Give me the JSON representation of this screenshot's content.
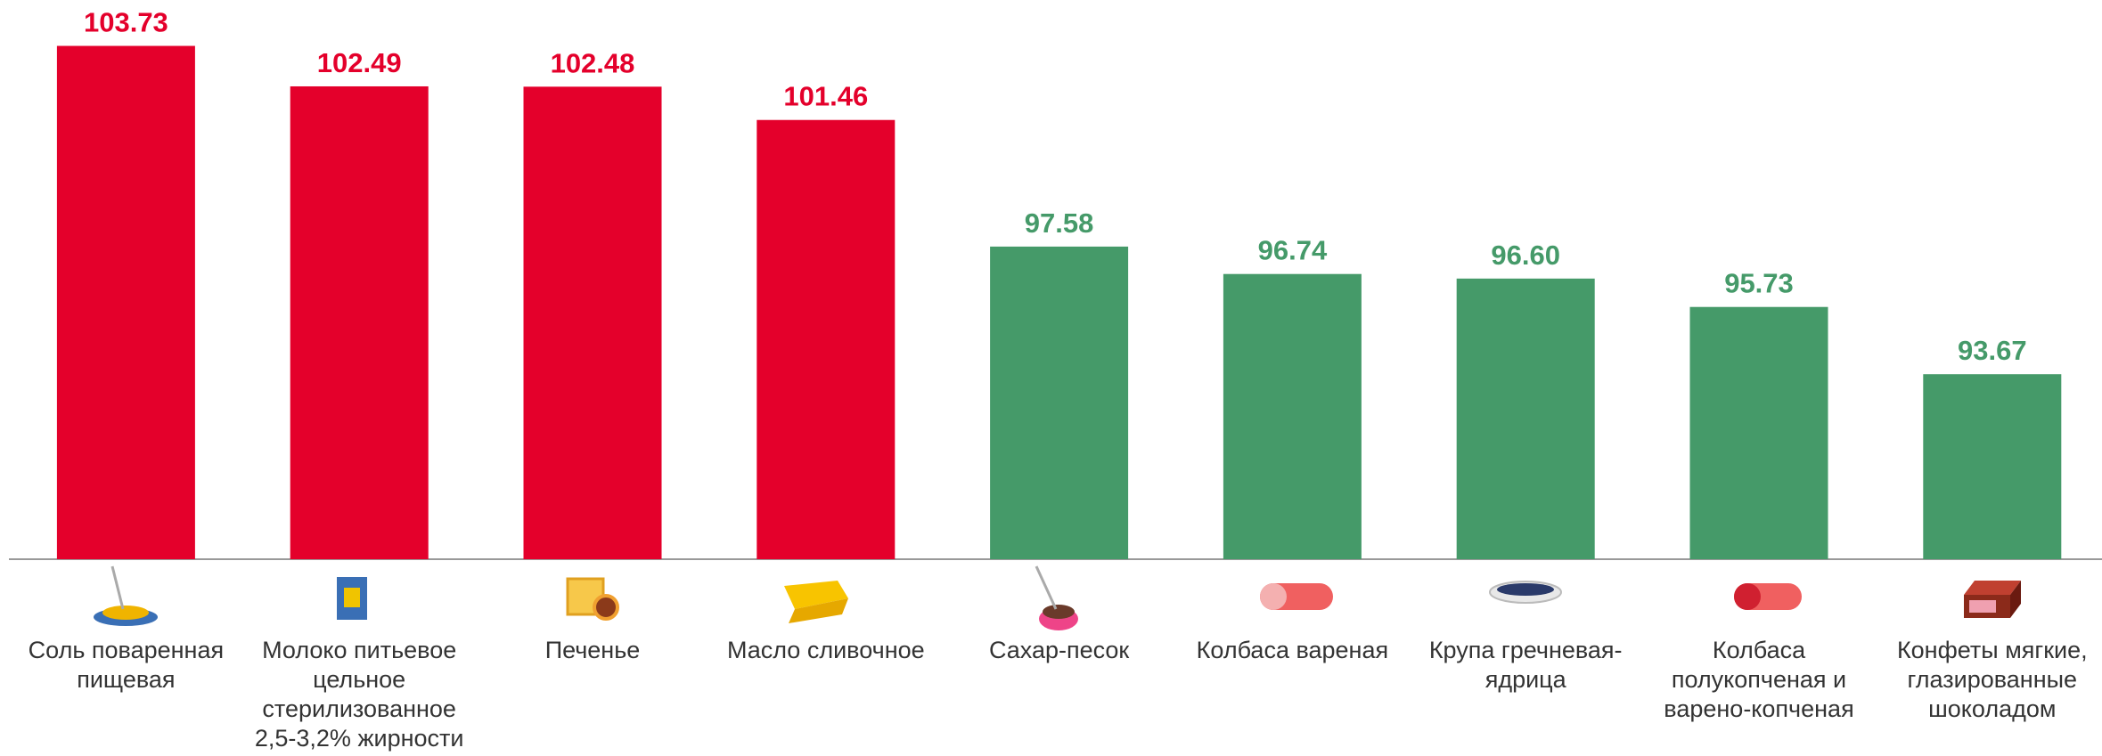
{
  "chart_data": {
    "type": "bar",
    "categories": [
      "Соль поваренная пищевая",
      "Молоко питьевое цельное стерилизованное 2,5-3,2% жирности",
      "Печенье",
      "Масло сливочное",
      "Сахар-песок",
      "Колбаса вареная",
      "Крупа гречневая-ядрица",
      "Колбаса полукопченая и варено-копченая",
      "Конфеты мягкие, глазированные шоколадом"
    ],
    "values": [
      103.73,
      102.49,
      102.48,
      101.46,
      97.58,
      96.74,
      96.6,
      95.73,
      93.67
    ],
    "value_labels": [
      "103.73",
      "102.49",
      "102.48",
      "101.46",
      "97.58",
      "96.74",
      "96.60",
      "95.73",
      "93.67"
    ],
    "colors": [
      "#e4002b",
      "#e4002b",
      "#e4002b",
      "#e4002b",
      "#459a69",
      "#459a69",
      "#459a69",
      "#459a69",
      "#459a69"
    ],
    "ylim": [
      88,
      105
    ]
  }
}
